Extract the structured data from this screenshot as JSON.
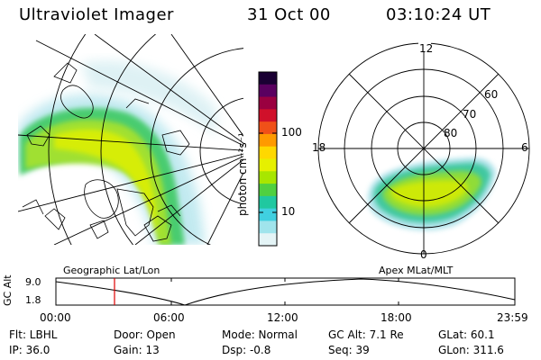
{
  "header": {
    "title": "Ultraviolet Imager",
    "date": "31 Oct 00",
    "time": "03:10:24 UT"
  },
  "colorbar": {
    "label": "photon cm⁻²s⁻¹",
    "ticks": [
      "100",
      "10"
    ]
  },
  "map_labels": {
    "left": "Geographic Lat/Lon",
    "right": "Apex MLat/MLT"
  },
  "polar": {
    "mlt_labels": {
      "top": "12",
      "left": "18",
      "right": "6",
      "bottom": "0"
    },
    "lat_labels": [
      "60",
      "70",
      "80"
    ]
  },
  "altitude_plot": {
    "axis_label": "GC Alt",
    "y_ticks": [
      "9.0",
      "1.8"
    ],
    "x_ticks": [
      "00:00",
      "06:00",
      "12:00",
      "18:00",
      "23:59"
    ]
  },
  "info": {
    "flt": "Flt: LBHL",
    "ip": "IP: 36.0",
    "door": "Door: Open",
    "gain": "Gain: 13",
    "mode": "Mode: Normal",
    "dsp": "Dsp:   -0.8",
    "gcalt": "GC Alt: 7.1 Re",
    "seq": "Seq: 39",
    "glat": "GLat:  60.1",
    "glon": "GLon: 311.6"
  },
  "colors": {
    "bar": [
      "#1a0033",
      "#5a0060",
      "#9a0040",
      "#d0102a",
      "#f05018",
      "#ff9a00",
      "#ffd800",
      "#e6f000",
      "#a8e600",
      "#50d040",
      "#20c8a0",
      "#40d0e0",
      "#a0e4ec",
      "#e4f4f6"
    ],
    "aurora_core": "#c8e600",
    "aurora_mid": "#70d848",
    "aurora_edge": "#3ccab8",
    "aurora_fringe": "#a8e0e8",
    "time_marker": "#e00000"
  }
}
